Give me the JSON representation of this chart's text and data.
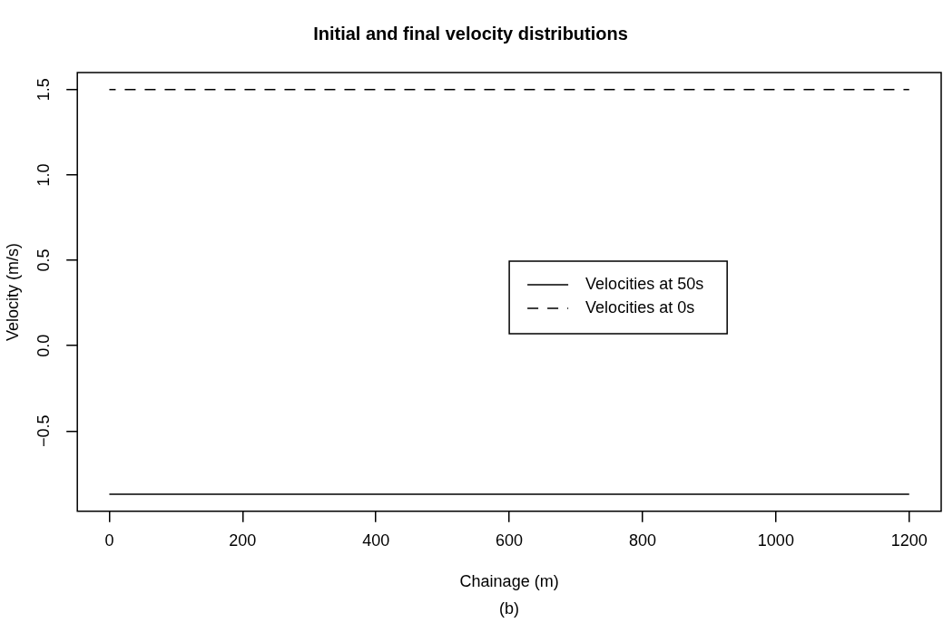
{
  "chart_data": {
    "type": "line",
    "title": "Initial and final velocity distributions",
    "xlabel": "Chainage (m)",
    "ylabel": "Velocity (m/s)",
    "annotations": [
      "(b)"
    ],
    "x": [
      0,
      1200
    ],
    "series": [
      {
        "name": "Velocities at 50s",
        "color": "#000000",
        "values": [
          -0.87,
          -0.87
        ],
        "line_style": "solid"
      },
      {
        "name": "Velocities at 0s",
        "color": "#000000",
        "values": [
          1.5,
          1.5
        ],
        "line_style": "dashed"
      }
    ],
    "xlim": [
      -48,
      1248
    ],
    "ylim": [
      -0.97,
      1.6
    ],
    "xticks": [
      0,
      200,
      400,
      600,
      800,
      1000,
      1200
    ],
    "yticks": [
      -0.5,
      {
        "value": 0,
        "label": "0.0"
      },
      0.5,
      {
        "value": 1,
        "label": "1.0"
      },
      1.5
    ],
    "grid": false,
    "legend": "right",
    "marker": "none"
  }
}
